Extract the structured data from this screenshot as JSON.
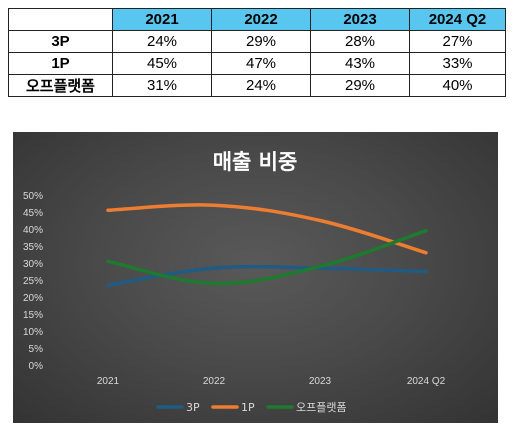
{
  "table": {
    "columns": [
      "2021",
      "2022",
      "2023",
      "2024 Q2"
    ],
    "rows": [
      {
        "label": "3P",
        "values": [
          "24%",
          "29%",
          "28%",
          "27%"
        ]
      },
      {
        "label": "1P",
        "values": [
          "45%",
          "47%",
          "43%",
          "33%"
        ]
      },
      {
        "label": "오프플랫폼",
        "values": [
          "31%",
          "24%",
          "29%",
          "40%"
        ]
      }
    ]
  },
  "chart_data": {
    "type": "line",
    "title": "매출 비중",
    "categories": [
      "2021",
      "2022",
      "2023",
      "2024 Q2"
    ],
    "y_ticks": [
      "0%",
      "5%",
      "10%",
      "15%",
      "20%",
      "25%",
      "30%",
      "35%",
      "40%",
      "45%",
      "50%"
    ],
    "ylim": [
      0,
      50
    ],
    "grid": false,
    "legend_position": "bottom",
    "series": [
      {
        "name": "3P",
        "color": "#1f5b82",
        "values": [
          23.5,
          28.5,
          28.5,
          27.5
        ]
      },
      {
        "name": "1P",
        "color": "#ed7d31",
        "values": [
          45.5,
          47,
          42.5,
          33
        ]
      },
      {
        "name": "오프플랫폼",
        "color": "#1e7a2e",
        "values": [
          30.5,
          24,
          29,
          39.5
        ]
      }
    ]
  }
}
